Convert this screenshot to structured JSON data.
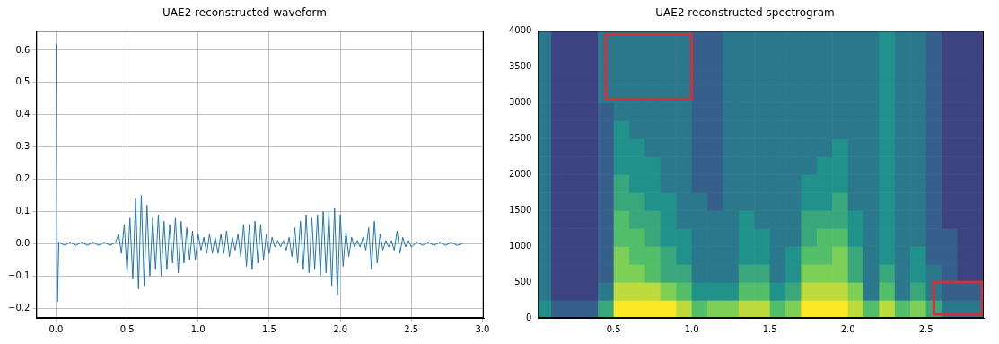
{
  "chart_data": [
    {
      "type": "line",
      "title": "UAE2 reconstructed waveform",
      "x": [
        0,
        0.01,
        0.02,
        0.06,
        0.1,
        0.14,
        0.18,
        0.22,
        0.26,
        0.3,
        0.34,
        0.38,
        0.42,
        0.44,
        0.46,
        0.48,
        0.5,
        0.52,
        0.54,
        0.56,
        0.58,
        0.6,
        0.62,
        0.64,
        0.66,
        0.68,
        0.7,
        0.72,
        0.74,
        0.76,
        0.78,
        0.8,
        0.82,
        0.84,
        0.86,
        0.88,
        0.9,
        0.92,
        0.94,
        0.96,
        0.98,
        1,
        1.02,
        1.04,
        1.06,
        1.08,
        1.1,
        1.12,
        1.14,
        1.16,
        1.18,
        1.2,
        1.22,
        1.24,
        1.26,
        1.28,
        1.3,
        1.32,
        1.34,
        1.36,
        1.38,
        1.4,
        1.42,
        1.44,
        1.46,
        1.48,
        1.5,
        1.52,
        1.54,
        1.56,
        1.58,
        1.6,
        1.62,
        1.64,
        1.66,
        1.68,
        1.7,
        1.72,
        1.74,
        1.76,
        1.78,
        1.8,
        1.82,
        1.84,
        1.86,
        1.88,
        1.9,
        1.92,
        1.94,
        1.96,
        1.98,
        2,
        2.02,
        2.04,
        2.06,
        2.08,
        2.1,
        2.12,
        2.14,
        2.16,
        2.18,
        2.2,
        2.22,
        2.24,
        2.26,
        2.28,
        2.3,
        2.32,
        2.34,
        2.36,
        2.38,
        2.4,
        2.42,
        2.44,
        2.46,
        2.48,
        2.5,
        2.54,
        2.58,
        2.62,
        2.66,
        2.7,
        2.74,
        2.78,
        2.82,
        2.86
      ],
      "values": [
        0.62,
        -0.18,
        0.005,
        -0.005,
        0.005,
        -0.005,
        0.005,
        -0.005,
        0.005,
        -0.005,
        0.005,
        -0.005,
        0.005,
        0.03,
        -0.03,
        0.06,
        -0.09,
        0.08,
        -0.11,
        0.14,
        -0.14,
        0.15,
        -0.13,
        0.12,
        -0.1,
        0.08,
        -0.08,
        0.09,
        -0.1,
        0.07,
        -0.08,
        0.06,
        -0.06,
        0.08,
        -0.09,
        0.07,
        -0.06,
        0.05,
        -0.05,
        0.04,
        -0.05,
        0.03,
        -0.02,
        0.02,
        -0.03,
        0.03,
        -0.03,
        0.02,
        -0.03,
        0.03,
        -0.03,
        0.04,
        -0.04,
        0.02,
        -0.02,
        0.03,
        -0.04,
        0.06,
        -0.07,
        0.06,
        -0.08,
        0.07,
        -0.06,
        0.06,
        -0.05,
        0.03,
        -0.03,
        0.02,
        -0.01,
        0.01,
        -0.01,
        0.01,
        -0.02,
        0.02,
        -0.04,
        0.05,
        -0.06,
        0.07,
        -0.08,
        0.09,
        -0.09,
        0.08,
        -0.08,
        0.09,
        -0.1,
        0.1,
        -0.09,
        0.1,
        -0.13,
        0.11,
        -0.16,
        0.09,
        -0.07,
        0.04,
        -0.04,
        0.02,
        -0.01,
        0.01,
        -0.01,
        0.02,
        -0.02,
        0.05,
        -0.08,
        0.07,
        -0.06,
        0.03,
        -0.02,
        0.01,
        -0.01,
        0.01,
        -0.02,
        0.04,
        -0.03,
        0.02,
        -0.01,
        0.01,
        -0.01,
        0.005,
        -0.005,
        0.005,
        -0.005,
        0.005,
        -0.005,
        0.005,
        -0.005,
        0
      ],
      "color": "#1f77b4",
      "xlim": [
        -0.14,
        3.01
      ],
      "ylim": [
        -0.23,
        0.66
      ],
      "xticks": [
        {
          "value": 0,
          "label": "0.0"
        },
        0.5,
        {
          "value": 1,
          "label": "1.0"
        },
        1.5,
        {
          "value": 2,
          "label": "2.0"
        },
        2.5,
        {
          "value": 3,
          "label": "3.0"
        }
      ],
      "yticks": [
        {
          "value": -0.2,
          "label": "−0.2"
        },
        {
          "value": -0.1,
          "label": "−0.1"
        },
        {
          "value": 0,
          "label": "0.0"
        },
        0.1,
        0.2,
        0.3,
        0.4,
        0.5,
        0.6
      ],
      "grid": true
    },
    {
      "type": "heatmap",
      "title": "UAE2 reconstructed spectrogram",
      "time_bins": [
        0,
        0.1,
        0.2,
        0.3,
        0.4,
        0.5,
        0.6,
        0.7,
        0.8,
        0.9,
        1,
        1.1,
        1.2,
        1.3,
        1.4,
        1.5,
        1.6,
        1.7,
        1.8,
        1.9,
        2,
        2.1,
        2.2,
        2.3,
        2.4,
        2.5,
        2.6,
        2.7,
        2.8,
        2.9
      ],
      "freq_bins": [
        0,
        250,
        500,
        750,
        1000,
        1250,
        1500,
        1750,
        2000,
        2250,
        2500,
        2750,
        3000,
        3250,
        3500,
        3750,
        4000
      ],
      "cells": [
        [
          5,
          4,
          4,
          4,
          4,
          4,
          4,
          4,
          4,
          4,
          4,
          4,
          4,
          4,
          4,
          4
        ],
        [
          3,
          2,
          2,
          2,
          2,
          2,
          2,
          2,
          2,
          2,
          2,
          2,
          2,
          2,
          2,
          2
        ],
        [
          3,
          2,
          2,
          2,
          2,
          2,
          2,
          2,
          2,
          2,
          2,
          2,
          2,
          2,
          2,
          2
        ],
        [
          3,
          2,
          2,
          2,
          2,
          2,
          2,
          2,
          2,
          2,
          2,
          2,
          2,
          2,
          2,
          2
        ],
        [
          6,
          4,
          3,
          3,
          3,
          3,
          3,
          3,
          3,
          3,
          3,
          3,
          4,
          4,
          4,
          4
        ],
        [
          10,
          9,
          8,
          8,
          7,
          7,
          6,
          6,
          5,
          5,
          5,
          4,
          4,
          4,
          4,
          4
        ],
        [
          10,
          9,
          8,
          7,
          7,
          6,
          6,
          5,
          5,
          5,
          4,
          4,
          4,
          4,
          4,
          4
        ],
        [
          10,
          9,
          7,
          7,
          6,
          6,
          5,
          5,
          5,
          4,
          4,
          4,
          4,
          4,
          4,
          4
        ],
        [
          10,
          8,
          6,
          6,
          5,
          5,
          5,
          4,
          4,
          4,
          4,
          4,
          4,
          4,
          4,
          4
        ],
        [
          9,
          7,
          6,
          5,
          5,
          4,
          4,
          4,
          4,
          4,
          4,
          4,
          4,
          4,
          4,
          4
        ],
        [
          7,
          5,
          4,
          4,
          4,
          4,
          4,
          3,
          3,
          3,
          3,
          3,
          3,
          3,
          3,
          3
        ],
        [
          8,
          5,
          4,
          4,
          4,
          4,
          3,
          3,
          3,
          3,
          3,
          3,
          3,
          3,
          3,
          3
        ],
        [
          8,
          5,
          4,
          4,
          4,
          4,
          4,
          4,
          4,
          4,
          4,
          4,
          4,
          4,
          4,
          4
        ],
        [
          9,
          7,
          6,
          5,
          5,
          5,
          4,
          4,
          4,
          4,
          4,
          4,
          4,
          4,
          4,
          4
        ],
        [
          9,
          7,
          6,
          5,
          5,
          4,
          4,
          4,
          4,
          4,
          4,
          4,
          4,
          4,
          4,
          4
        ],
        [
          7,
          5,
          4,
          4,
          4,
          4,
          4,
          4,
          4,
          4,
          4,
          4,
          4,
          4,
          4,
          4
        ],
        [
          8,
          6,
          5,
          5,
          4,
          4,
          4,
          4,
          4,
          4,
          4,
          4,
          4,
          4,
          4,
          4
        ],
        [
          10,
          9,
          8,
          7,
          6,
          6,
          5,
          5,
          4,
          4,
          4,
          4,
          4,
          4,
          4,
          4
        ],
        [
          10,
          9,
          8,
          7,
          7,
          6,
          5,
          5,
          5,
          4,
          4,
          4,
          4,
          4,
          4,
          4
        ],
        [
          10,
          9,
          8,
          8,
          7,
          6,
          6,
          5,
          5,
          5,
          4,
          4,
          4,
          4,
          4,
          4
        ],
        [
          9,
          8,
          6,
          6,
          5,
          5,
          4,
          4,
          4,
          4,
          4,
          4,
          4,
          4,
          4,
          4
        ],
        [
          7,
          4,
          4,
          4,
          4,
          4,
          4,
          4,
          4,
          4,
          4,
          4,
          4,
          4,
          4,
          4
        ],
        [
          9,
          7,
          6,
          5,
          5,
          5,
          5,
          5,
          5,
          5,
          5,
          5,
          5,
          5,
          5,
          5
        ],
        [
          7,
          4,
          4,
          4,
          4,
          4,
          4,
          4,
          4,
          4,
          4,
          4,
          4,
          4,
          4,
          4
        ],
        [
          8,
          6,
          5,
          5,
          4,
          4,
          4,
          4,
          4,
          4,
          4,
          4,
          4,
          4,
          4,
          4
        ],
        [
          6,
          4,
          4,
          3,
          3,
          3,
          3,
          3,
          3,
          3,
          3,
          3,
          3,
          3,
          3,
          3
        ],
        [
          4,
          3,
          3,
          3,
          3,
          2,
          2,
          2,
          2,
          2,
          2,
          2,
          2,
          2,
          2,
          2
        ],
        [
          4,
          3,
          2,
          2,
          2,
          2,
          2,
          2,
          2,
          2,
          2,
          2,
          2,
          2,
          2,
          2
        ],
        [
          4,
          3,
          2,
          2,
          2,
          2,
          2,
          2,
          2,
          2,
          2,
          2,
          2,
          2,
          2,
          2
        ]
      ],
      "color_range": [
        0,
        10
      ],
      "xlim": [
        0.016,
        2.87
      ],
      "ylim": [
        0,
        4000
      ],
      "xticks": [
        0.5,
        {
          "value": 1,
          "label": "1.0"
        },
        1.5,
        {
          "value": 2,
          "label": "2.0"
        },
        2.5
      ],
      "yticks": [
        0,
        500,
        1000,
        1500,
        2000,
        2500,
        3000,
        3500,
        4000
      ],
      "grid": false,
      "highlight_boxes": [
        {
          "x": [
            0.45,
            1.0
          ],
          "y": [
            3050,
            3950
          ]
        },
        {
          "x": [
            2.55,
            2.86
          ],
          "y": [
            50,
            500
          ]
        }
      ]
    }
  ]
}
